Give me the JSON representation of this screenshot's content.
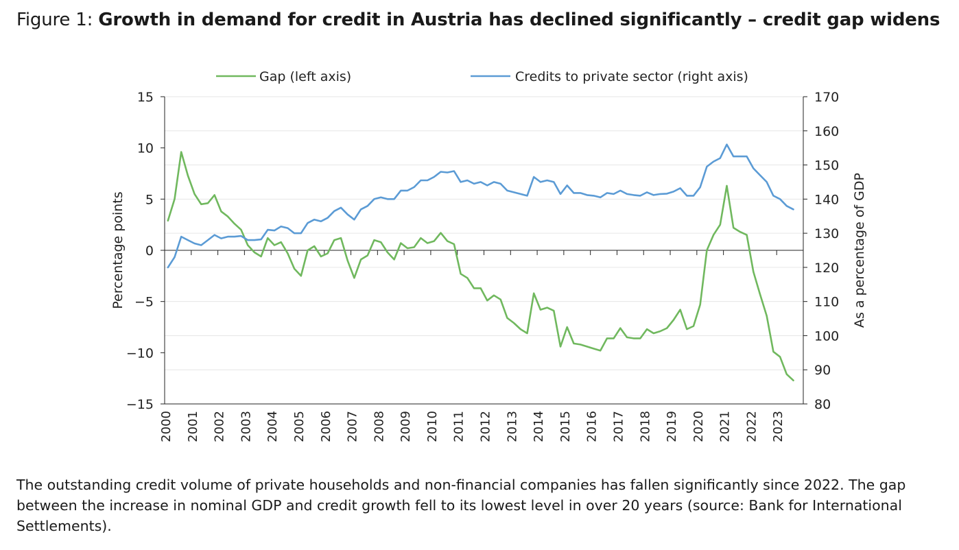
{
  "title": {
    "prefix": "Figure 1: ",
    "main": "Growth in demand for credit in Austria has declined significantly – credit gap widens"
  },
  "caption": "The outstanding credit volume of private households and non-financial companies has fallen significantly since 2022. The gap between the increase in nominal GDP and credit growth fell to its lowest level in over 20 years (source: Bank for International Settlements).",
  "chart_data": {
    "type": "line",
    "x_start": "2000",
    "x_step": "quarterly",
    "x_ticks": [
      "2000",
      "2001",
      "2002",
      "2003",
      "2004",
      "2005",
      "2006",
      "2007",
      "2008",
      "2009",
      "2010",
      "2011",
      "2012",
      "2013",
      "2014",
      "2015",
      "2016",
      "2017",
      "2018",
      "2019",
      "2020",
      "2021",
      "2022",
      "2023"
    ],
    "ylabel_left": "Percentage points",
    "ylabel_right": "As a percentage of GDP",
    "ylim_left": [
      -15,
      15
    ],
    "ylim_right": [
      80,
      170
    ],
    "yticks_left": [
      "15",
      "10",
      "5",
      "0",
      "-5",
      "-10",
      "-15"
    ],
    "yticks_right": [
      "170",
      "160",
      "150",
      "140",
      "130",
      "120",
      "110",
      "100",
      "90",
      "80"
    ],
    "grid": true,
    "legend": "top",
    "series": [
      {
        "name": "Gap (left axis)",
        "axis": "left",
        "color": "#70b85e",
        "values": [
          2.9,
          5.0,
          9.6,
          7.3,
          5.5,
          4.5,
          4.6,
          5.4,
          3.8,
          3.3,
          2.6,
          2.0,
          0.5,
          -0.2,
          -0.6,
          1.2,
          0.5,
          0.8,
          -0.3,
          -1.8,
          -2.5,
          0.0,
          0.4,
          -0.6,
          -0.3,
          1.0,
          1.2,
          -1.0,
          -2.7,
          -0.9,
          -0.5,
          1.0,
          0.8,
          -0.2,
          -0.9,
          0.7,
          0.2,
          0.3,
          1.2,
          0.7,
          0.9,
          1.7,
          0.9,
          0.6,
          -2.3,
          -2.7,
          -3.7,
          -3.7,
          -4.9,
          -4.4,
          -4.8,
          -6.6,
          -7.1,
          -7.7,
          -8.1,
          -4.2,
          -5.8,
          -5.6,
          -5.9,
          -9.4,
          -7.5,
          -9.1,
          -9.2,
          -9.4,
          -9.6,
          -9.8,
          -8.6,
          -8.6,
          -7.6,
          -8.5,
          -8.6,
          -8.6,
          -7.7,
          -8.1,
          -7.9,
          -7.6,
          -6.8,
          -5.8,
          -7.7,
          -7.4,
          -5.3,
          0.0,
          1.5,
          2.5,
          6.3,
          2.2,
          1.8,
          1.5,
          -2.1,
          -4.3,
          -6.4,
          -9.9,
          -10.4,
          -12.1,
          -12.7
        ]
      },
      {
        "name": "Credits to private sector (right axis)",
        "axis": "right",
        "color": "#5b9bd5",
        "values": [
          120,
          123,
          129,
          128,
          127,
          126.5,
          128,
          129.5,
          128.5,
          129,
          129,
          129.2,
          128,
          128,
          128.2,
          131,
          130.8,
          132,
          131.5,
          130,
          130,
          133,
          134,
          133.5,
          134.5,
          136.5,
          137.5,
          135.5,
          134,
          137,
          138,
          140,
          140.5,
          140,
          140,
          142.5,
          142.5,
          143.5,
          145.5,
          145.5,
          146.5,
          148,
          147.8,
          148.2,
          145,
          145.5,
          144.5,
          145,
          144,
          145,
          144.5,
          142.5,
          142,
          141.5,
          141,
          146.5,
          145,
          145.5,
          145,
          141.5,
          144,
          141.8,
          141.8,
          141.2,
          141,
          140.5,
          141.8,
          141.5,
          142.5,
          141.5,
          141.2,
          141,
          142,
          141.2,
          141.5,
          141.6,
          142.2,
          143.2,
          141,
          141,
          143.5,
          149.5,
          151,
          152,
          156,
          152.5,
          152.5,
          152.5,
          149,
          147,
          145,
          141,
          140,
          138,
          137
        ]
      }
    ]
  }
}
